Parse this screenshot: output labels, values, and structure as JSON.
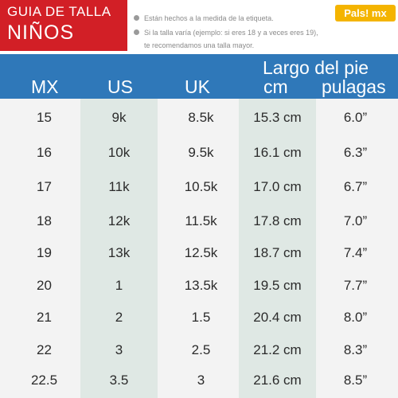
{
  "title": {
    "line1": "GUIA DE TALLA",
    "line2": "NIÑOS"
  },
  "notes": [
    "Están hechos a la medida de la etiqueta.",
    "Si la talla varía (ejemplo: si eres 18 y a veces eres 19),",
    "te recomendamos una talla mayor."
  ],
  "brand": "Pals! mx",
  "headers": {
    "mx": "MX",
    "us": "US",
    "uk": "UK",
    "largo": "Largo del pie",
    "cm": "cm",
    "pulgadas": "pulagas"
  },
  "rows": [
    {
      "mx": "15",
      "us": "9k",
      "uk": "8.5k",
      "cm": "15.3 cm",
      "in": "6.0”"
    },
    {
      "mx": "16",
      "us": "10k",
      "uk": "9.5k",
      "cm": "16.1 cm",
      "in": "6.3”"
    },
    {
      "mx": "17",
      "us": "11k",
      "uk": "10.5k",
      "cm": "17.0 cm",
      "in": "6.7”"
    },
    {
      "mx": "18",
      "us": "12k",
      "uk": "11.5k",
      "cm": "17.8 cm",
      "in": "7.0”"
    },
    {
      "mx": "19",
      "us": "13k",
      "uk": "12.5k",
      "cm": "18.7 cm",
      "in": "7.4”"
    },
    {
      "mx": "20",
      "us": "1",
      "uk": "13.5k",
      "cm": "19.5 cm",
      "in": "7.7”"
    },
    {
      "mx": "21",
      "us": "2",
      "uk": "1.5",
      "cm": "20.4 cm",
      "in": "8.0”"
    },
    {
      "mx": "22",
      "us": "3",
      "uk": "2.5",
      "cm": "21.2 cm",
      "in": "8.3”"
    },
    {
      "mx": "22.5",
      "us": "3.5",
      "uk": "3",
      "cm": "21.6 cm",
      "in": "8.5”"
    }
  ],
  "colors": {
    "red": "#d21f26",
    "blue": "#2f78b9",
    "band": "#dfe8e4",
    "logo": "#f4b400"
  }
}
